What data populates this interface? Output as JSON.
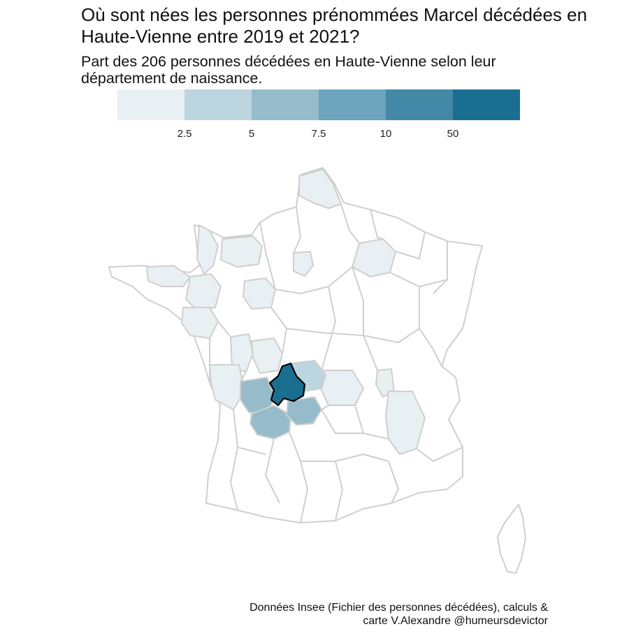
{
  "title": "Où sont nées les personnes prénommées Marcel décédées en Haute-Vienne entre 2019 et 2021?",
  "subtitle": "Part des 206 personnes décédées en Haute-Vienne selon leur département de naissance.",
  "legend": {
    "colors": [
      "#e8f0f3",
      "#bdd5de",
      "#96bccb",
      "#6ba4bc",
      "#4388a6",
      "#1a6e90"
    ],
    "ticks": [
      "2.5",
      "5",
      "7.5",
      "10",
      "50"
    ]
  },
  "map_data": {
    "highlighted_department": "Haute-Vienne",
    "highlight_color": "#1a6e90",
    "base_color": "#ffffff",
    "border_color": "#cfcfcf"
  },
  "caption": {
    "line1": "Données Insee (Fichier des personnes décédées), calculs &",
    "line2": "carte V.Alexandre @humeursdevictor"
  }
}
